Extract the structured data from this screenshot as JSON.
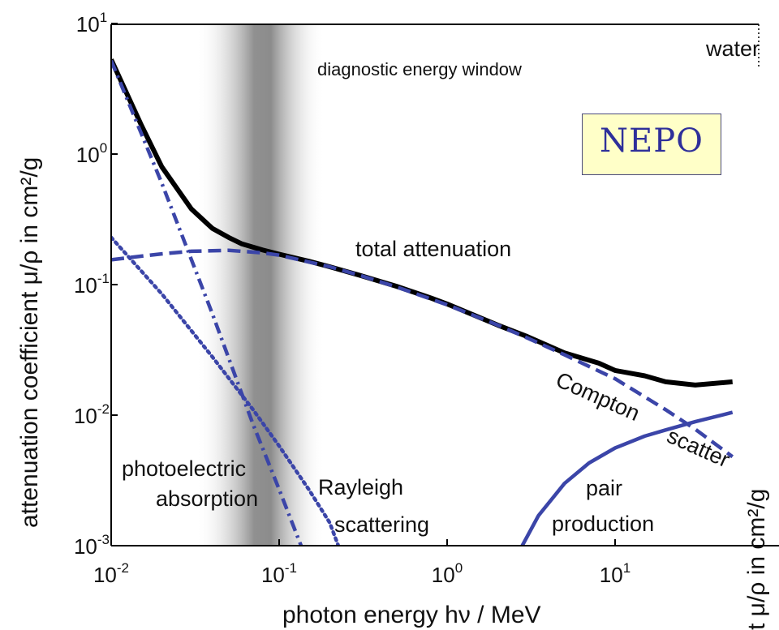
{
  "chart_data": {
    "type": "line",
    "title": "",
    "material_label": "water",
    "window_label": "diagnostic energy window",
    "xlabel": "photon energy hν / MeV",
    "ylabel": "attenuation coefficient μ/ρ in cm²/g",
    "ylabel_cut": "t μ/ρ in cm²/g",
    "xscale": "log",
    "yscale": "log",
    "xlim": [
      0.01,
      50
    ],
    "ylim": [
      0.001,
      10
    ],
    "x_ticks": [
      {
        "base": "10",
        "exp": "-2",
        "value": 0.01
      },
      {
        "base": "10",
        "exp": "-1",
        "value": 0.1
      },
      {
        "base": "10",
        "exp": "0",
        "value": 1
      },
      {
        "base": "10",
        "exp": "1",
        "value": 10
      }
    ],
    "y_ticks": [
      {
        "base": "10",
        "exp": "-3",
        "value": 0.001
      },
      {
        "base": "10",
        "exp": "-2",
        "value": 0.01
      },
      {
        "base": "10",
        "exp": "-1",
        "value": 0.1
      },
      {
        "base": "10",
        "exp": "0",
        "value": 1
      },
      {
        "base": "10",
        "exp": "1",
        "value": 10
      }
    ],
    "shaded_band": {
      "x_center": 0.07,
      "x_from": 0.04,
      "x_to": 0.15
    },
    "series": [
      {
        "key": "total",
        "color": "#000000",
        "style": "solid",
        "x": [
          0.01,
          0.015,
          0.02,
          0.03,
          0.04,
          0.05,
          0.06,
          0.08,
          0.1,
          0.15,
          0.2,
          0.3,
          0.5,
          0.8,
          1,
          2,
          3,
          5,
          8,
          10,
          15,
          20,
          30,
          50
        ],
        "y": [
          5.3,
          1.7,
          0.8,
          0.38,
          0.27,
          0.23,
          0.205,
          0.184,
          0.171,
          0.151,
          0.137,
          0.118,
          0.097,
          0.079,
          0.071,
          0.049,
          0.04,
          0.03,
          0.025,
          0.022,
          0.02,
          0.018,
          0.017,
          0.018
        ]
      },
      {
        "key": "photoelectric",
        "color": "#3b45a8",
        "style": "dashdot",
        "x": [
          0.01,
          0.02,
          0.04,
          0.07,
          0.1,
          0.135
        ],
        "y": [
          5.2,
          0.6,
          0.06,
          0.0085,
          0.0027,
          0.001
        ]
      },
      {
        "key": "rayleigh",
        "color": "#3b45a8",
        "style": "dotted",
        "x": [
          0.01,
          0.02,
          0.04,
          0.07,
          0.1,
          0.15,
          0.2,
          0.225
        ],
        "y": [
          0.23,
          0.085,
          0.028,
          0.011,
          0.0058,
          0.0027,
          0.0015,
          0.001
        ]
      },
      {
        "key": "compton",
        "color": "#3b45a8",
        "style": "dashed",
        "x": [
          0.01,
          0.015,
          0.02,
          0.03,
          0.05,
          0.08,
          0.1,
          0.15,
          0.2,
          0.3,
          0.5,
          1,
          2,
          3,
          5,
          10,
          20,
          30,
          50
        ],
        "y": [
          0.155,
          0.165,
          0.172,
          0.18,
          0.183,
          0.175,
          0.168,
          0.149,
          0.137,
          0.118,
          0.096,
          0.07,
          0.049,
          0.039,
          0.029,
          0.019,
          0.011,
          0.0078,
          0.0048
        ]
      },
      {
        "key": "pair",
        "color": "#3b45a8",
        "style": "solid",
        "x": [
          2.8,
          3.5,
          5,
          7,
          10,
          15,
          20,
          30,
          50
        ],
        "y": [
          0.001,
          0.0017,
          0.003,
          0.0043,
          0.0056,
          0.0069,
          0.0077,
          0.0089,
          0.0105
        ]
      }
    ],
    "annotations": {
      "total": "total attenuation",
      "compton_1": "Compton",
      "compton_2": "scatter",
      "pair_1": "pair",
      "pair_2": "production",
      "rayleigh_1": "Rayleigh",
      "rayleigh_2": "scattering",
      "photo_1": "photoelectric",
      "photo_2": "absorption"
    }
  },
  "logo": {
    "text": "NEPO"
  }
}
